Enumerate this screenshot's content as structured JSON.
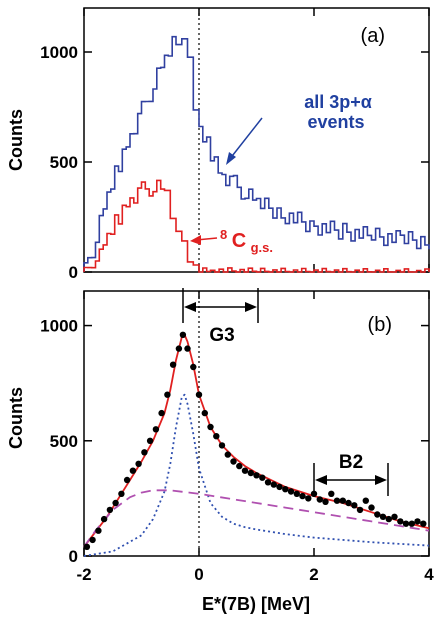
{
  "chart_data": [
    {
      "panel": "(a)",
      "type": "line",
      "ylabel": "Counts",
      "xlim": [
        -2,
        4
      ],
      "ylim": [
        0,
        1200
      ],
      "yticks": [
        0,
        500,
        1000
      ],
      "vline_x": 0,
      "series": [
        {
          "name": "all 3p+α events",
          "color": "#3040a0",
          "step": true,
          "x": [
            -2.0,
            -1.8,
            -1.6,
            -1.4,
            -1.2,
            -1.0,
            -0.8,
            -0.6,
            -0.4,
            -0.3,
            -0.2,
            -0.1,
            0.0,
            0.2,
            0.4,
            0.6,
            0.8,
            1.0,
            1.5,
            2.0,
            2.5,
            3.0,
            3.5,
            4.0
          ],
          "y": [
            10,
            120,
            320,
            470,
            610,
            720,
            830,
            950,
            1050,
            1090,
            1030,
            850,
            660,
            560,
            450,
            410,
            360,
            320,
            260,
            210,
            185,
            165,
            150,
            140
          ]
        },
        {
          "name": "8Cg.s.",
          "color": "#e02020",
          "step": true,
          "x": [
            -2.0,
            -1.8,
            -1.6,
            -1.4,
            -1.2,
            -1.0,
            -0.8,
            -0.6,
            -0.5,
            -0.4,
            -0.3,
            -0.2,
            -0.1,
            0.0,
            0.2,
            0.5,
            1.0,
            2.0,
            3.0,
            4.0
          ],
          "y": [
            0,
            40,
            140,
            240,
            330,
            370,
            385,
            375,
            330,
            230,
            140,
            70,
            35,
            15,
            8,
            5,
            3,
            2,
            1,
            0
          ]
        }
      ],
      "annotations": {
        "all": "all 3p+α",
        "all_line2": "events",
        "c8_superscript": "8",
        "c8_main": "C",
        "c8_subscript": "g.s."
      }
    },
    {
      "panel": "(b)",
      "type": "scatter",
      "xlabel": "E*(7B) [MeV]",
      "ylabel": "Counts",
      "xlim": [
        -2,
        4
      ],
      "ylim": [
        0,
        1150
      ],
      "xticks": [
        -2,
        0,
        2,
        4
      ],
      "yticks": [
        0,
        500,
        1000
      ],
      "vline_x": 0,
      "points": {
        "x": [
          -1.95,
          -1.85,
          -1.75,
          -1.65,
          -1.55,
          -1.45,
          -1.35,
          -1.25,
          -1.15,
          -1.05,
          -0.95,
          -0.85,
          -0.75,
          -0.65,
          -0.55,
          -0.45,
          -0.35,
          -0.28,
          -0.2,
          -0.1,
          0.0,
          0.1,
          0.2,
          0.3,
          0.4,
          0.5,
          0.6,
          0.7,
          0.8,
          0.9,
          1.0,
          1.1,
          1.2,
          1.3,
          1.4,
          1.5,
          1.6,
          1.7,
          1.8,
          1.9,
          2.0,
          2.1,
          2.2,
          2.3,
          2.4,
          2.5,
          2.6,
          2.7,
          2.8,
          2.9,
          3.0,
          3.1,
          3.2,
          3.3,
          3.4,
          3.5,
          3.6,
          3.7,
          3.8,
          3.9
        ],
        "y": [
          40,
          70,
          110,
          160,
          200,
          230,
          270,
          330,
          370,
          400,
          450,
          500,
          550,
          620,
          700,
          830,
          900,
          960,
          900,
          820,
          700,
          620,
          560,
          520,
          480,
          440,
          410,
          390,
          370,
          360,
          350,
          340,
          320,
          310,
          300,
          290,
          280,
          270,
          260,
          250,
          270,
          245,
          235,
          270,
          240,
          240,
          230,
          220,
          200,
          240,
          210,
          180,
          170,
          160,
          170,
          150,
          140,
          140,
          150,
          140
        ]
      },
      "series": [
        {
          "name": "fit",
          "color": "#e02020",
          "style": "solid",
          "x": [
            -2.0,
            -1.6,
            -1.2,
            -1.0,
            -0.8,
            -0.6,
            -0.5,
            -0.4,
            -0.3,
            -0.25,
            -0.2,
            -0.1,
            0.0,
            0.2,
            0.4,
            0.6,
            0.8,
            1.0,
            1.5,
            2.0,
            2.5,
            3.0,
            3.5,
            4.0
          ],
          "y": [
            40,
            170,
            330,
            410,
            500,
            620,
            720,
            850,
            950,
            960,
            930,
            830,
            700,
            560,
            480,
            430,
            390,
            360,
            300,
            260,
            230,
            190,
            150,
            120
          ]
        },
        {
          "name": "peak",
          "color": "#3050b0",
          "style": "dotted",
          "x": [
            -2.0,
            -1.5,
            -1.0,
            -0.8,
            -0.6,
            -0.5,
            -0.4,
            -0.3,
            -0.25,
            -0.2,
            -0.1,
            0.0,
            0.2,
            0.4,
            0.6,
            0.8,
            1.0,
            1.5,
            2.0,
            3.0,
            4.0
          ],
          "y": [
            0,
            20,
            90,
            160,
            280,
            400,
            560,
            690,
            700,
            660,
            530,
            380,
            230,
            170,
            140,
            125,
            115,
            95,
            80,
            60,
            45
          ]
        },
        {
          "name": "background",
          "color": "#b050b0",
          "style": "dashed",
          "x": [
            -2.0,
            -1.8,
            -1.5,
            -1.2,
            -1.0,
            -0.8,
            -0.5,
            0.0,
            0.5,
            1.0,
            1.5,
            2.0,
            2.5,
            3.0,
            3.5,
            4.0
          ],
          "y": [
            40,
            110,
            200,
            255,
            275,
            285,
            285,
            270,
            250,
            230,
            210,
            190,
            170,
            150,
            130,
            110
          ]
        }
      ],
      "annotations": {
        "g3": "G3",
        "b2": "B2"
      }
    }
  ]
}
